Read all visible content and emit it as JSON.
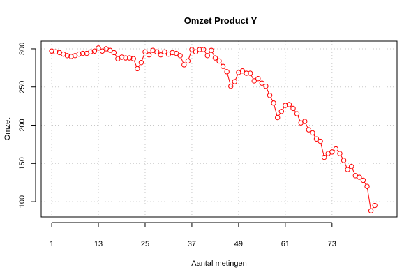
{
  "chart_data": {
    "type": "line",
    "title": "Omzet Product Y",
    "xlabel": "Aantal metingen",
    "ylabel": "Omzet",
    "xlim": [
      -1.7,
      89.7
    ],
    "ylim": [
      80,
      310
    ],
    "xticks": [
      1,
      13,
      25,
      37,
      49,
      61,
      73
    ],
    "yticks": [
      100,
      150,
      200,
      250,
      300
    ],
    "grid": true,
    "marker": "open-circle",
    "series_color": "#ff0000",
    "series": [
      {
        "x": [
          1,
          2,
          3,
          4,
          5,
          6,
          7,
          8,
          9,
          10,
          11,
          12,
          13,
          14,
          15,
          16,
          17,
          18,
          19,
          20,
          21,
          22,
          23,
          24,
          25,
          26,
          27,
          28,
          29,
          30,
          31,
          32,
          33,
          34,
          35,
          36,
          37,
          38,
          39,
          40,
          41,
          42,
          43,
          44,
          45,
          46,
          47,
          48,
          49,
          50,
          51,
          52,
          53,
          54,
          55,
          56,
          57,
          58,
          59,
          60,
          61,
          62,
          63,
          64,
          65,
          66,
          67,
          68,
          69,
          70,
          71,
          72,
          73,
          74,
          75,
          76,
          77,
          78,
          79,
          80,
          81,
          82,
          83,
          84,
          85,
          86
        ],
        "values": [
          297,
          296,
          295,
          293,
          291,
          290,
          291,
          293,
          294,
          294,
          296,
          297,
          301,
          297,
          300,
          298,
          295,
          287,
          289,
          288,
          288,
          287,
          274,
          282,
          296,
          292,
          298,
          296,
          292,
          296,
          293,
          295,
          294,
          291,
          279,
          284,
          299,
          296,
          299,
          299,
          291,
          298,
          288,
          284,
          277,
          270,
          251,
          257,
          269,
          271,
          268,
          268,
          258,
          261,
          255,
          251,
          239,
          229,
          210,
          218,
          226,
          227,
          222,
          215,
          203,
          205,
          194,
          190,
          182,
          179,
          158,
          163,
          165,
          169,
          163,
          154,
          142,
          146,
          134,
          132,
          128,
          120,
          88,
          95,
          null,
          null
        ]
      }
    ]
  }
}
